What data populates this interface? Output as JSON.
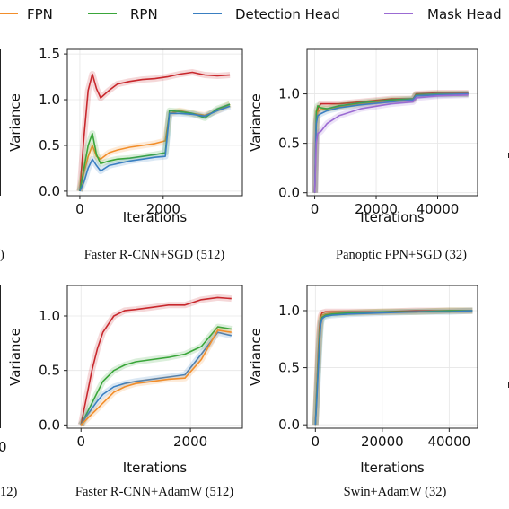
{
  "legend": {
    "items": [
      {
        "name": "FPN",
        "color": "#f28e2b"
      },
      {
        "name": "RPN",
        "color": "#3aa63a"
      },
      {
        "name": "Detection Head",
        "color": "#3a7fc1"
      },
      {
        "name": "Mask Head",
        "color": "#9b6bd3"
      }
    ]
  },
  "colors": {
    "Backbone": "#c8282d"
  },
  "edge_text": {
    "top_left": ")",
    "bottom_left": "12)",
    "bottom_left_tick": "0"
  },
  "chart_data": [
    {
      "type": "line",
      "caption": "Faster R-CNN+SGD (512)",
      "xlabel": "Iterations",
      "ylabel": "Variance",
      "xlim": [
        -300,
        3900
      ],
      "ylim": [
        -0.05,
        1.55
      ],
      "xticks": [
        0,
        2000
      ],
      "yticks": [
        0.0,
        0.5,
        1.0,
        1.5
      ],
      "ytick_labels": [
        "0.0",
        "0.5",
        "1.0",
        "1.5"
      ],
      "grid": true,
      "series": [
        {
          "color": "#c8282d",
          "x": [
            0,
            100,
            200,
            300,
            400,
            500,
            700,
            900,
            1200,
            1500,
            1800,
            2100,
            2400,
            2700,
            3000,
            3300,
            3600
          ],
          "y": [
            0.0,
            0.6,
            1.1,
            1.28,
            1.12,
            1.02,
            1.1,
            1.17,
            1.2,
            1.22,
            1.23,
            1.25,
            1.28,
            1.3,
            1.27,
            1.26,
            1.27
          ]
        },
        {
          "color": "#f28e2b",
          "x": [
            0,
            100,
            200,
            300,
            400,
            500,
            700,
            900,
            1200,
            1500,
            1800,
            2050,
            2150,
            2400,
            2700,
            3000,
            3300,
            3600
          ],
          "y": [
            0.0,
            0.2,
            0.38,
            0.5,
            0.38,
            0.35,
            0.42,
            0.45,
            0.48,
            0.5,
            0.52,
            0.55,
            0.85,
            0.88,
            0.85,
            0.83,
            0.88,
            0.95
          ]
        },
        {
          "color": "#3aa63a",
          "x": [
            0,
            100,
            200,
            300,
            400,
            500,
            700,
            900,
            1200,
            1500,
            1800,
            2050,
            2150,
            2400,
            2700,
            3000,
            3300,
            3600
          ],
          "y": [
            0.0,
            0.25,
            0.5,
            0.63,
            0.4,
            0.3,
            0.33,
            0.35,
            0.36,
            0.38,
            0.4,
            0.42,
            0.88,
            0.87,
            0.85,
            0.8,
            0.9,
            0.95
          ]
        },
        {
          "color": "#3a7fc1",
          "x": [
            0,
            100,
            200,
            300,
            400,
            500,
            700,
            900,
            1200,
            1500,
            1800,
            2050,
            2150,
            2400,
            2700,
            3000,
            3300,
            3600
          ],
          "y": [
            0.0,
            0.1,
            0.25,
            0.35,
            0.28,
            0.22,
            0.28,
            0.3,
            0.33,
            0.35,
            0.37,
            0.38,
            0.85,
            0.85,
            0.84,
            0.82,
            0.88,
            0.93
          ]
        }
      ]
    },
    {
      "type": "line",
      "caption": "Panoptic FPN+SGD (32)",
      "xlabel": "Iterations",
      "ylabel": "Variance",
      "xlim": [
        -2500,
        53000
      ],
      "ylim": [
        -0.03,
        1.45
      ],
      "xticks": [
        0,
        20000,
        40000
      ],
      "yticks": [
        0.0,
        0.5,
        1.0
      ],
      "ytick_labels": [
        "0.0",
        "0.5",
        "1.0"
      ],
      "grid": true,
      "series": [
        {
          "color": "#c8282d",
          "x": [
            0,
            500,
            1000,
            2000,
            4000,
            8000,
            15000,
            25000,
            32000,
            33000,
            40000,
            50000
          ],
          "y": [
            0.0,
            0.7,
            0.85,
            0.9,
            0.9,
            0.9,
            0.92,
            0.95,
            0.95,
            1.0,
            1.01,
            1.01
          ]
        },
        {
          "color": "#f28e2b",
          "x": [
            0,
            500,
            1000,
            2000,
            4000,
            8000,
            15000,
            25000,
            32000,
            33000,
            40000,
            50000
          ],
          "y": [
            0.0,
            0.75,
            0.82,
            0.84,
            0.85,
            0.87,
            0.9,
            0.93,
            0.94,
            0.99,
            1.0,
            1.0
          ]
        },
        {
          "color": "#3aa63a",
          "x": [
            0,
            500,
            1000,
            2000,
            4000,
            8000,
            15000,
            25000,
            32000,
            33000,
            40000,
            50000
          ],
          "y": [
            0.0,
            0.82,
            0.88,
            0.86,
            0.85,
            0.88,
            0.91,
            0.94,
            0.95,
            0.99,
            1.0,
            1.0
          ]
        },
        {
          "color": "#3a7fc1",
          "x": [
            0,
            500,
            1000,
            2000,
            4000,
            8000,
            15000,
            25000,
            32000,
            33000,
            40000,
            50000
          ],
          "y": [
            0.0,
            0.7,
            0.78,
            0.8,
            0.83,
            0.86,
            0.89,
            0.92,
            0.94,
            0.98,
            0.99,
            1.0
          ]
        },
        {
          "color": "#9b6bd3",
          "x": [
            0,
            500,
            1000,
            2000,
            4000,
            8000,
            15000,
            25000,
            32000,
            33000,
            40000,
            50000
          ],
          "y": [
            0.0,
            0.5,
            0.6,
            0.62,
            0.7,
            0.78,
            0.85,
            0.9,
            0.92,
            0.96,
            0.98,
            0.99
          ]
        }
      ]
    },
    {
      "type": "line",
      "caption": "Faster R-CNN+AdamW (512)",
      "xlabel": "Iterations",
      "ylabel": "Variance",
      "xlim": [
        -250,
        2950
      ],
      "ylim": [
        -0.03,
        1.28
      ],
      "xticks": [
        0,
        2000
      ],
      "yticks": [
        0.0,
        0.5,
        1.0
      ],
      "ytick_labels": [
        "0.0",
        "0.5",
        "1.0"
      ],
      "grid": true,
      "series": [
        {
          "color": "#c8282d",
          "x": [
            0,
            100,
            200,
            300,
            400,
            600,
            800,
            1000,
            1300,
            1600,
            1900,
            2200,
            2500,
            2750
          ],
          "y": [
            0.0,
            0.25,
            0.5,
            0.7,
            0.85,
            1.0,
            1.05,
            1.06,
            1.08,
            1.1,
            1.1,
            1.15,
            1.17,
            1.16
          ]
        },
        {
          "color": "#3aa63a",
          "x": [
            0,
            100,
            200,
            300,
            400,
            600,
            800,
            1000,
            1300,
            1600,
            1900,
            2200,
            2500,
            2750
          ],
          "y": [
            0.0,
            0.1,
            0.2,
            0.3,
            0.4,
            0.5,
            0.55,
            0.58,
            0.6,
            0.62,
            0.65,
            0.72,
            0.9,
            0.88
          ]
        },
        {
          "color": "#3a7fc1",
          "x": [
            0,
            100,
            200,
            300,
            400,
            600,
            800,
            1000,
            1300,
            1600,
            1900,
            2200,
            2500,
            2750
          ],
          "y": [
            0.0,
            0.08,
            0.15,
            0.22,
            0.28,
            0.35,
            0.38,
            0.4,
            0.42,
            0.44,
            0.46,
            0.65,
            0.85,
            0.82
          ]
        },
        {
          "color": "#f28e2b",
          "x": [
            0,
            100,
            200,
            300,
            400,
            600,
            800,
            1000,
            1300,
            1600,
            1900,
            2200,
            2500,
            2750
          ],
          "y": [
            0.0,
            0.05,
            0.1,
            0.15,
            0.2,
            0.3,
            0.35,
            0.38,
            0.4,
            0.42,
            0.43,
            0.6,
            0.87,
            0.85
          ]
        }
      ]
    },
    {
      "type": "line",
      "caption": "Swin+AdamW (32)",
      "xlabel": "Iterations",
      "ylabel": "Variance",
      "xlim": [
        -2500,
        48500
      ],
      "ylim": [
        -0.03,
        1.22
      ],
      "xticks": [
        0,
        20000,
        40000
      ],
      "yticks": [
        0.0,
        0.5,
        1.0
      ],
      "ytick_labels": [
        "0.0",
        "0.5",
        "1.0"
      ],
      "grid": true,
      "series": [
        {
          "color": "#c8282d",
          "x": [
            0,
            400,
            800,
            1200,
            1600,
            2000,
            3000,
            5000,
            10000,
            20000,
            30000,
            40000,
            47000
          ],
          "y": [
            0.0,
            0.3,
            0.6,
            0.85,
            0.95,
            0.98,
            0.99,
            0.99,
            0.99,
            0.99,
            1.0,
            1.0,
            1.0
          ]
        },
        {
          "color": "#f28e2b",
          "x": [
            0,
            400,
            800,
            1200,
            1600,
            2000,
            3000,
            5000,
            10000,
            20000,
            30000,
            40000,
            47000
          ],
          "y": [
            0.0,
            0.28,
            0.55,
            0.8,
            0.93,
            0.96,
            0.97,
            0.98,
            0.98,
            0.99,
            0.99,
            1.0,
            1.0
          ]
        },
        {
          "color": "#3aa63a",
          "x": [
            0,
            400,
            800,
            1200,
            1600,
            2000,
            3000,
            5000,
            10000,
            20000,
            30000,
            40000,
            47000
          ],
          "y": [
            0.0,
            0.25,
            0.5,
            0.75,
            0.9,
            0.94,
            0.96,
            0.97,
            0.98,
            0.99,
            0.99,
            1.0,
            1.0
          ]
        },
        {
          "color": "#3a7fc1",
          "x": [
            0,
            400,
            800,
            1200,
            1600,
            2000,
            3000,
            5000,
            10000,
            20000,
            30000,
            40000,
            47000
          ],
          "y": [
            0.0,
            0.2,
            0.45,
            0.7,
            0.88,
            0.93,
            0.95,
            0.96,
            0.97,
            0.98,
            0.99,
            0.99,
            1.0
          ]
        }
      ]
    }
  ]
}
